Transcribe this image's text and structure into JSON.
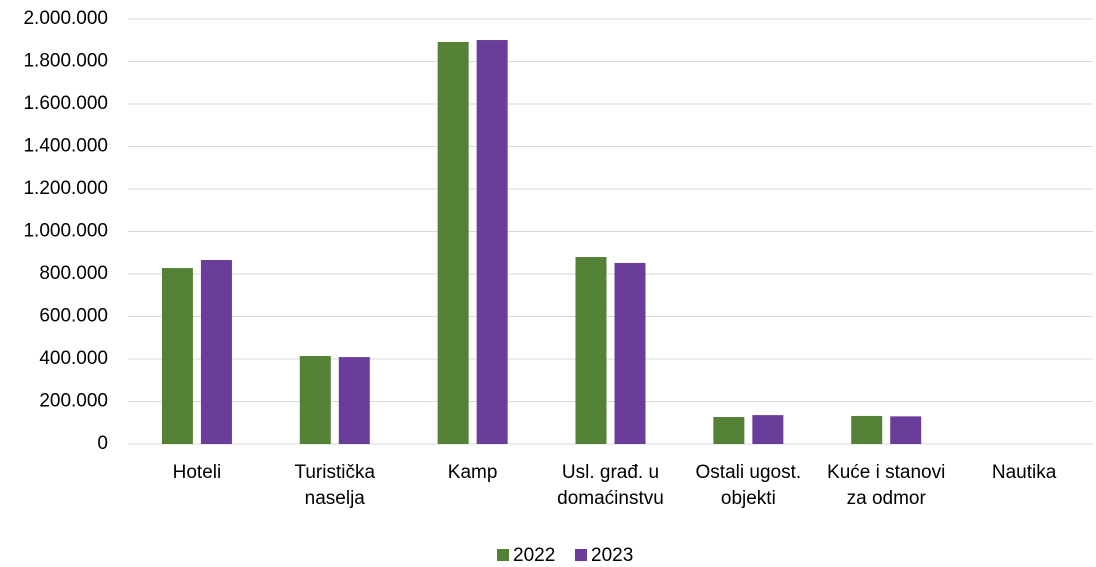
{
  "chart_data": {
    "type": "bar",
    "categories": [
      "Hoteli",
      "Turistička naselja",
      "Kamp",
      "Usl. građ. u domaćinstvu",
      "Ostali ugost. objekti",
      "Kuće i stanovi za odmor",
      "Nautika"
    ],
    "series": [
      {
        "name": "2022",
        "color": "#538135",
        "values": [
          828000,
          414000,
          1892000,
          880000,
          127000,
          132000,
          0
        ]
      },
      {
        "name": "2023",
        "color": "#6a3d9a",
        "values": [
          866000,
          409000,
          1901000,
          852000,
          136000,
          130000,
          0
        ]
      }
    ],
    "ylim": [
      0,
      2000000
    ],
    "yticks": [
      0,
      {
        "value": 200000,
        "label": "200.000"
      },
      {
        "value": 400000,
        "label": "400.000"
      },
      {
        "value": 600000,
        "label": "600.000"
      },
      {
        "value": 800000,
        "label": "800.000"
      },
      {
        "value": 1000000,
        "label": "1.000.000"
      },
      {
        "value": 1200000,
        "label": "1.200.000"
      },
      {
        "value": 1400000,
        "label": "1.400.000"
      },
      {
        "value": 1600000,
        "label": "1.600.000"
      },
      {
        "value": 1800000,
        "label": "1.800.000"
      },
      {
        "value": 2000000,
        "label": "2.000.000"
      }
    ],
    "grid": true,
    "legend": "bottom"
  }
}
